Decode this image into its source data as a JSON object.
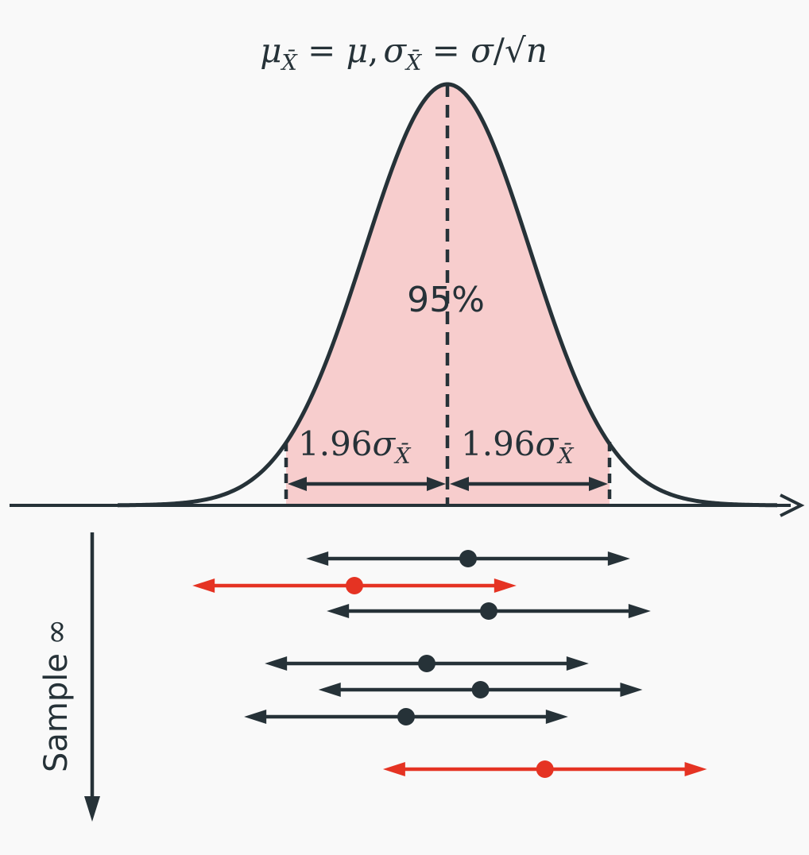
{
  "formula": {
    "mu": "μ",
    "sub": "X̄",
    "equals": " = ",
    "mu_rhs": "μ",
    "comma": ",",
    "sigma": "σ",
    "equals2": " = ",
    "sigma_rhs": "σ",
    "slash": "/",
    "sqrt": "√",
    "n": "n"
  },
  "coverage_label": "95%",
  "interval_half_width": {
    "coef": "1.96",
    "sigma": "σ",
    "sub": "X̄"
  },
  "sample_axis": {
    "label": "Sample",
    "symbol": "∞"
  },
  "colors": {
    "ink": "#263238",
    "fill": "#f7cdcd",
    "miss": "#e53323",
    "background": "#f9f9f9"
  },
  "confidence_intervals": [
    {
      "center": 0.25,
      "contains_mean": true
    },
    {
      "center": -1.125,
      "contains_mean": false
    },
    {
      "center": 0.5,
      "contains_mean": true
    },
    {
      "center": -0.25,
      "contains_mean": true
    },
    {
      "center": 0.4,
      "contains_mean": true
    },
    {
      "center": -0.5,
      "contains_mean": true
    },
    {
      "center": 1.18,
      "contains_mean": false
    }
  ]
}
